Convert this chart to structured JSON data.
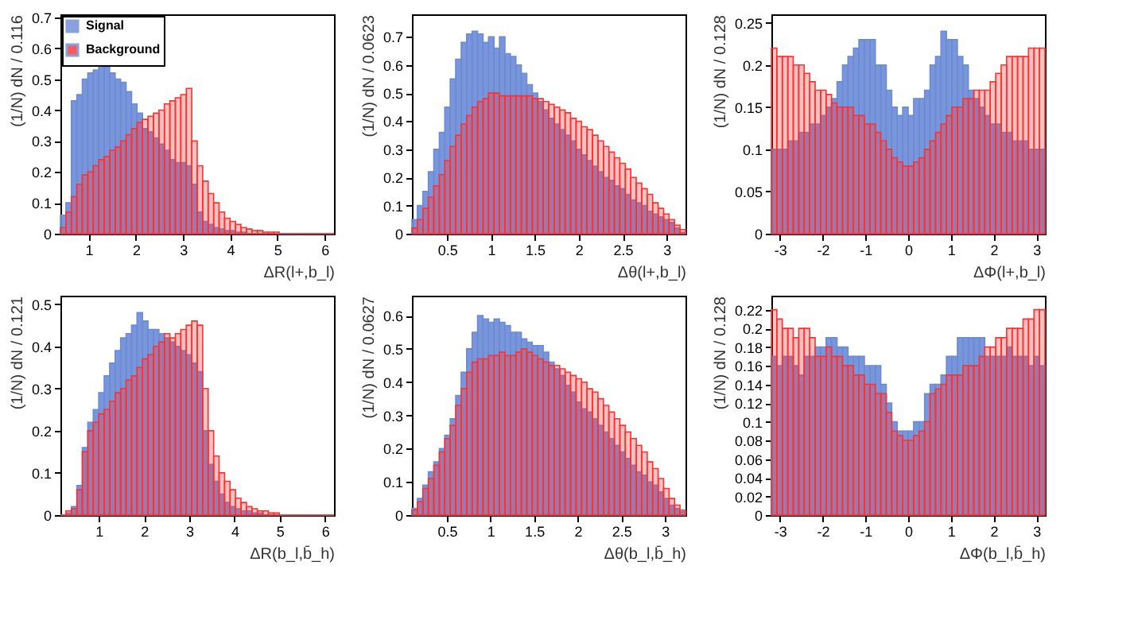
{
  "chart_data": [
    {
      "type": "histogram",
      "xlabel": "ΔR(l+,b_l)",
      "ylabel": "(1/N) dN / 0.116",
      "legend": "top left",
      "grid": false,
      "bins": [
        0.4,
        0.516,
        0.632,
        0.748,
        0.864,
        0.98,
        1.096,
        1.212,
        1.328,
        1.444,
        1.56,
        1.676,
        1.792,
        1.908,
        2.024,
        2.14,
        2.256,
        2.372,
        2.488,
        2.604,
        2.72,
        2.836,
        2.952,
        3.068,
        3.184,
        3.3,
        3.416,
        3.532,
        3.648,
        3.764,
        3.88,
        3.996,
        4.112,
        4.228,
        4.344,
        4.46,
        4.576,
        4.692,
        4.808,
        4.924,
        5.04,
        5.156,
        5.272,
        5.388,
        5.504,
        5.62,
        5.736,
        5.852,
        5.968,
        6.084,
        6.2
      ],
      "xlim": [
        0.4,
        6.2
      ],
      "xticks": [
        1,
        2,
        3,
        4,
        5,
        6
      ],
      "ylim": [
        0,
        0.71
      ],
      "yticks": [
        0,
        0.1,
        0.2,
        0.3,
        0.4,
        0.5,
        0.6,
        0.7
      ],
      "series": [
        {
          "name": "Signal",
          "color": "#6b8bd6",
          "values": [
            0.06,
            0.1,
            0.43,
            0.45,
            0.5,
            0.52,
            0.53,
            0.55,
            0.54,
            0.52,
            0.5,
            0.49,
            0.46,
            0.42,
            0.39,
            0.34,
            0.33,
            0.31,
            0.29,
            0.27,
            0.24,
            0.23,
            0.23,
            0.22,
            0.16,
            0.07,
            0.04,
            0.03,
            0.02,
            0.015,
            0.01,
            0.01,
            0.005,
            0.005,
            0,
            0,
            0,
            0,
            0,
            0,
            0,
            0,
            0,
            0,
            0,
            0,
            0,
            0,
            0,
            0
          ]
        },
        {
          "name": "Background",
          "color": "#ff3030",
          "values": [
            0.02,
            0.07,
            0.12,
            0.16,
            0.19,
            0.2,
            0.22,
            0.24,
            0.25,
            0.27,
            0.28,
            0.3,
            0.32,
            0.34,
            0.36,
            0.37,
            0.38,
            0.39,
            0.4,
            0.42,
            0.43,
            0.44,
            0.45,
            0.47,
            0.3,
            0.22,
            0.17,
            0.13,
            0.1,
            0.07,
            0.05,
            0.04,
            0.03,
            0.02,
            0.015,
            0.01,
            0.01,
            0.005,
            0.005,
            0.005,
            0,
            0,
            0,
            0,
            0,
            0,
            0,
            0,
            0,
            0
          ]
        }
      ]
    },
    {
      "type": "histogram",
      "xlabel": "Δθ(l+,b_l)",
      "ylabel": "(1/N) dN / 0.0623",
      "grid": false,
      "bins": [
        0.1,
        0.162,
        0.225,
        0.287,
        0.349,
        0.412,
        0.474,
        0.536,
        0.598,
        0.661,
        0.723,
        0.785,
        0.848,
        0.91,
        0.972,
        1.035,
        1.097,
        1.159,
        1.221,
        1.284,
        1.346,
        1.408,
        1.471,
        1.533,
        1.595,
        1.658,
        1.72,
        1.782,
        1.844,
        1.907,
        1.969,
        2.031,
        2.094,
        2.156,
        2.218,
        2.281,
        2.343,
        2.405,
        2.467,
        2.53,
        2.592,
        2.654,
        2.717,
        2.779,
        2.841,
        2.904,
        2.966,
        3.028,
        3.09,
        3.153,
        3.215
      ],
      "xlim": [
        0.1,
        3.215
      ],
      "xticks": [
        0.5,
        1,
        1.5,
        2,
        2.5,
        3
      ],
      "ylim": [
        0,
        0.78
      ],
      "yticks": [
        0,
        0.1,
        0.2,
        0.3,
        0.4,
        0.5,
        0.6,
        0.7
      ],
      "series": [
        {
          "color": "#6b8bd6",
          "values": [
            0.05,
            0.1,
            0.15,
            0.22,
            0.3,
            0.36,
            0.45,
            0.55,
            0.62,
            0.68,
            0.71,
            0.72,
            0.71,
            0.68,
            0.7,
            0.66,
            0.7,
            0.64,
            0.63,
            0.6,
            0.57,
            0.53,
            0.5,
            0.47,
            0.44,
            0.41,
            0.39,
            0.37,
            0.35,
            0.33,
            0.3,
            0.28,
            0.26,
            0.24,
            0.22,
            0.2,
            0.19,
            0.17,
            0.16,
            0.14,
            0.12,
            0.11,
            0.1,
            0.08,
            0.07,
            0.06,
            0.05,
            0.04,
            0.02,
            0.005
          ]
        },
        {
          "color": "#ff3030",
          "values": [
            0.02,
            0.05,
            0.09,
            0.13,
            0.17,
            0.21,
            0.26,
            0.31,
            0.35,
            0.39,
            0.42,
            0.45,
            0.47,
            0.48,
            0.5,
            0.5,
            0.49,
            0.49,
            0.49,
            0.49,
            0.49,
            0.49,
            0.48,
            0.48,
            0.47,
            0.46,
            0.45,
            0.44,
            0.43,
            0.41,
            0.4,
            0.38,
            0.37,
            0.35,
            0.33,
            0.31,
            0.29,
            0.27,
            0.25,
            0.23,
            0.2,
            0.18,
            0.16,
            0.14,
            0.11,
            0.09,
            0.07,
            0.05,
            0.03,
            0.015
          ]
        }
      ]
    },
    {
      "type": "histogram",
      "xlabel": "ΔΦ(l+,b_l)",
      "ylabel": "(1/N) dN / 0.128",
      "grid": false,
      "bins": [
        -3.2,
        -3.072,
        -2.944,
        -2.816,
        -2.688,
        -2.56,
        -2.432,
        -2.304,
        -2.176,
        -2.048,
        -1.92,
        -1.792,
        -1.664,
        -1.536,
        -1.408,
        -1.28,
        -1.152,
        -1.024,
        -0.896,
        -0.768,
        -0.64,
        -0.512,
        -0.384,
        -0.256,
        -0.128,
        0,
        0.128,
        0.256,
        0.384,
        0.512,
        0.64,
        0.768,
        0.896,
        1.024,
        1.152,
        1.28,
        1.408,
        1.536,
        1.664,
        1.792,
        1.92,
        2.048,
        2.176,
        2.304,
        2.432,
        2.56,
        2.688,
        2.816,
        2.944,
        3.072,
        3.2
      ],
      "xlim": [
        -3.2,
        3.2
      ],
      "xticks": [
        -3,
        -2,
        -1,
        0,
        1,
        2,
        3
      ],
      "ylim": [
        0,
        0.26
      ],
      "yticks": [
        0,
        0.05,
        0.1,
        0.15,
        0.2,
        0.25
      ],
      "series": [
        {
          "color": "#6b8bd6",
          "values": [
            0.1,
            0.1,
            0.1,
            0.11,
            0.11,
            0.12,
            0.12,
            0.13,
            0.13,
            0.14,
            0.15,
            0.16,
            0.18,
            0.2,
            0.21,
            0.22,
            0.23,
            0.23,
            0.23,
            0.2,
            0.2,
            0.17,
            0.15,
            0.14,
            0.15,
            0.14,
            0.16,
            0.16,
            0.17,
            0.2,
            0.21,
            0.24,
            0.23,
            0.23,
            0.21,
            0.2,
            0.17,
            0.16,
            0.15,
            0.14,
            0.13,
            0.13,
            0.12,
            0.12,
            0.11,
            0.11,
            0.11,
            0.1,
            0.1,
            0.1
          ]
        },
        {
          "color": "#ff3030",
          "values": [
            0.22,
            0.21,
            0.21,
            0.21,
            0.2,
            0.2,
            0.19,
            0.18,
            0.17,
            0.17,
            0.165,
            0.155,
            0.15,
            0.15,
            0.15,
            0.14,
            0.14,
            0.13,
            0.13,
            0.12,
            0.11,
            0.1,
            0.09,
            0.085,
            0.08,
            0.08,
            0.085,
            0.09,
            0.1,
            0.11,
            0.12,
            0.13,
            0.14,
            0.15,
            0.15,
            0.16,
            0.16,
            0.17,
            0.17,
            0.17,
            0.18,
            0.19,
            0.2,
            0.21,
            0.21,
            0.21,
            0.21,
            0.22,
            0.22,
            0.22
          ]
        }
      ]
    },
    {
      "type": "histogram",
      "xlabel": "ΔR(b_l,b̄_h)",
      "ylabel": "(1/N) dN / 0.121",
      "grid": false,
      "bins": [
        0.15,
        0.271,
        0.392,
        0.513,
        0.634,
        0.755,
        0.876,
        0.997,
        1.118,
        1.239,
        1.36,
        1.481,
        1.602,
        1.723,
        1.844,
        1.965,
        2.086,
        2.207,
        2.328,
        2.449,
        2.57,
        2.691,
        2.812,
        2.933,
        3.054,
        3.175,
        3.296,
        3.417,
        3.538,
        3.659,
        3.78,
        3.901,
        4.022,
        4.143,
        4.264,
        4.385,
        4.506,
        4.627,
        4.748,
        4.869,
        4.99,
        5.111,
        5.232,
        5.353,
        5.474,
        5.595,
        5.716,
        5.837,
        5.958,
        6.079,
        6.2
      ],
      "xlim": [
        0.15,
        6.2
      ],
      "xticks": [
        1,
        2,
        3,
        4,
        5,
        6
      ],
      "ylim": [
        0,
        0.52
      ],
      "yticks": [
        0,
        0.1,
        0.2,
        0.3,
        0.4,
        0.5
      ],
      "series": [
        {
          "color": "#6b8bd6",
          "values": [
            0,
            0.005,
            0.02,
            0.07,
            0.16,
            0.22,
            0.25,
            0.29,
            0.33,
            0.36,
            0.39,
            0.42,
            0.43,
            0.45,
            0.48,
            0.46,
            0.44,
            0.44,
            0.43,
            0.42,
            0.41,
            0.4,
            0.39,
            0.38,
            0.36,
            0.34,
            0.2,
            0.12,
            0.08,
            0.05,
            0.03,
            0.02,
            0.015,
            0.01,
            0.01,
            0.005,
            0.005,
            0,
            0,
            0,
            0,
            0,
            0,
            0,
            0,
            0,
            0,
            0,
            0,
            0
          ]
        },
        {
          "color": "#ff3030",
          "values": [
            0,
            0.01,
            0.015,
            0.06,
            0.15,
            0.2,
            0.22,
            0.24,
            0.25,
            0.27,
            0.29,
            0.3,
            0.32,
            0.33,
            0.35,
            0.37,
            0.38,
            0.4,
            0.41,
            0.43,
            0.42,
            0.43,
            0.44,
            0.45,
            0.46,
            0.45,
            0.3,
            0.2,
            0.14,
            0.1,
            0.08,
            0.06,
            0.04,
            0.03,
            0.02,
            0.015,
            0.01,
            0.01,
            0.005,
            0.005,
            0,
            0,
            0,
            0,
            0,
            0,
            0,
            0,
            0,
            0
          ]
        }
      ]
    },
    {
      "type": "histogram",
      "xlabel": "Δθ(b_l,b̄_h)",
      "ylabel": "(1/N) dN / 0.0627",
      "grid": false,
      "bins": [
        0.1,
        0.163,
        0.225,
        0.288,
        0.351,
        0.414,
        0.476,
        0.539,
        0.602,
        0.664,
        0.727,
        0.79,
        0.852,
        0.915,
        0.978,
        1.041,
        1.103,
        1.166,
        1.229,
        1.291,
        1.354,
        1.417,
        1.479,
        1.542,
        1.605,
        1.668,
        1.73,
        1.793,
        1.856,
        1.918,
        1.981,
        2.044,
        2.106,
        2.169,
        2.232,
        2.295,
        2.357,
        2.42,
        2.483,
        2.545,
        2.608,
        2.671,
        2.733,
        2.796,
        2.859,
        2.922,
        2.984,
        3.047,
        3.11,
        3.172,
        3.235
      ],
      "xlim": [
        0.1,
        3.235
      ],
      "xticks": [
        0.5,
        1,
        1.5,
        2,
        2.5,
        3
      ],
      "ylim": [
        0,
        0.66
      ],
      "yticks": [
        0,
        0.1,
        0.2,
        0.3,
        0.4,
        0.5,
        0.6
      ],
      "series": [
        {
          "color": "#6b8bd6",
          "values": [
            0.02,
            0.05,
            0.09,
            0.13,
            0.16,
            0.2,
            0.24,
            0.29,
            0.36,
            0.43,
            0.5,
            0.55,
            0.6,
            0.59,
            0.58,
            0.59,
            0.58,
            0.57,
            0.55,
            0.55,
            0.53,
            0.52,
            0.51,
            0.51,
            0.49,
            0.46,
            0.44,
            0.42,
            0.39,
            0.37,
            0.34,
            0.32,
            0.31,
            0.29,
            0.27,
            0.25,
            0.23,
            0.21,
            0.19,
            0.17,
            0.15,
            0.13,
            0.12,
            0.1,
            0.09,
            0.07,
            0.05,
            0.03,
            0.02,
            0.01
          ]
        },
        {
          "color": "#ff3030",
          "values": [
            0.015,
            0.04,
            0.08,
            0.11,
            0.15,
            0.19,
            0.23,
            0.27,
            0.33,
            0.38,
            0.43,
            0.46,
            0.47,
            0.47,
            0.48,
            0.48,
            0.49,
            0.48,
            0.48,
            0.49,
            0.5,
            0.49,
            0.48,
            0.47,
            0.46,
            0.45,
            0.45,
            0.44,
            0.43,
            0.42,
            0.41,
            0.4,
            0.38,
            0.37,
            0.35,
            0.33,
            0.31,
            0.29,
            0.27,
            0.25,
            0.23,
            0.21,
            0.19,
            0.16,
            0.14,
            0.11,
            0.08,
            0.05,
            0.03,
            0.015
          ]
        }
      ]
    },
    {
      "type": "histogram",
      "xlabel": "ΔΦ(b_l,b̄_h)",
      "ylabel": "(1/N) dN / 0.128",
      "grid": false,
      "bins": [
        -3.2,
        -3.072,
        -2.944,
        -2.816,
        -2.688,
        -2.56,
        -2.432,
        -2.304,
        -2.176,
        -2.048,
        -1.92,
        -1.792,
        -1.664,
        -1.536,
        -1.408,
        -1.28,
        -1.152,
        -1.024,
        -0.896,
        -0.768,
        -0.64,
        -0.512,
        -0.384,
        -0.256,
        -0.128,
        0,
        0.128,
        0.256,
        0.384,
        0.512,
        0.64,
        0.768,
        0.896,
        1.024,
        1.152,
        1.28,
        1.408,
        1.536,
        1.664,
        1.792,
        1.92,
        2.048,
        2.176,
        2.304,
        2.432,
        2.56,
        2.688,
        2.816,
        2.944,
        3.072,
        3.2
      ],
      "xlim": [
        -3.2,
        3.2
      ],
      "xticks": [
        -3,
        -2,
        -1,
        0,
        1,
        2,
        3
      ],
      "ylim": [
        0,
        0.235
      ],
      "yticks": [
        0,
        0.02,
        0.04,
        0.06,
        0.08,
        0.1,
        0.12,
        0.14,
        0.16,
        0.18,
        0.2,
        0.22
      ],
      "series": [
        {
          "color": "#6b8bd6",
          "values": [
            0.17,
            0.16,
            0.17,
            0.17,
            0.16,
            0.15,
            0.17,
            0.17,
            0.18,
            0.18,
            0.19,
            0.19,
            0.18,
            0.18,
            0.17,
            0.17,
            0.17,
            0.16,
            0.16,
            0.16,
            0.14,
            0.12,
            0.1,
            0.09,
            0.09,
            0.09,
            0.1,
            0.1,
            0.13,
            0.14,
            0.14,
            0.15,
            0.17,
            0.17,
            0.19,
            0.19,
            0.19,
            0.19,
            0.19,
            0.17,
            0.17,
            0.17,
            0.17,
            0.18,
            0.17,
            0.17,
            0.17,
            0.16,
            0.17,
            0.16
          ]
        },
        {
          "color": "#ff3030",
          "values": [
            0.22,
            0.21,
            0.2,
            0.2,
            0.19,
            0.2,
            0.2,
            0.19,
            0.17,
            0.17,
            0.18,
            0.17,
            0.17,
            0.16,
            0.16,
            0.15,
            0.15,
            0.14,
            0.14,
            0.13,
            0.13,
            0.11,
            0.09,
            0.085,
            0.08,
            0.08,
            0.085,
            0.09,
            0.1,
            0.13,
            0.135,
            0.14,
            0.15,
            0.15,
            0.15,
            0.16,
            0.16,
            0.16,
            0.17,
            0.18,
            0.18,
            0.19,
            0.19,
            0.2,
            0.2,
            0.2,
            0.21,
            0.21,
            0.22,
            0.22
          ]
        }
      ]
    }
  ]
}
